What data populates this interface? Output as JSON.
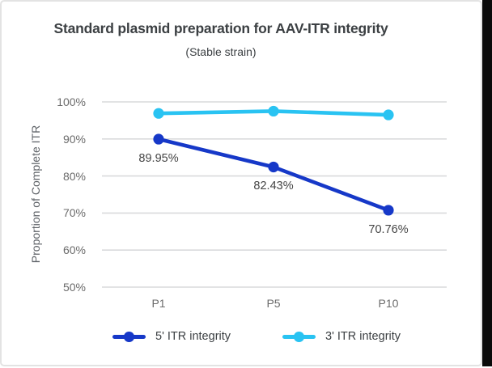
{
  "chart_data": {
    "type": "line",
    "title": "Standard plasmid preparation for AAV-ITR integrity",
    "subtitle": "(Stable strain)",
    "ylabel": "Proportion of Complete ITR",
    "xlabel": "",
    "categories": [
      "P1",
      "P5",
      "P10"
    ],
    "series": [
      {
        "name": "5' ITR integrity",
        "color": "#1638c8",
        "values": [
          89.95,
          82.43,
          70.76
        ],
        "labels": [
          "89.95%",
          "82.43%",
          "70.76%"
        ],
        "labels_shown": true
      },
      {
        "name": "3' ITR integrity",
        "color": "#29c3f2",
        "values": [
          96.9,
          97.5,
          96.5
        ],
        "labels": [],
        "labels_shown": false,
        "values_estimated": true
      }
    ],
    "ylim": [
      50,
      100
    ],
    "ytick_labels": [
      "100%",
      "90%",
      "80%",
      "70%",
      "60%",
      "50%"
    ],
    "grid": true,
    "gridline_color": "#d9dadc",
    "legend_position": "bottom"
  }
}
